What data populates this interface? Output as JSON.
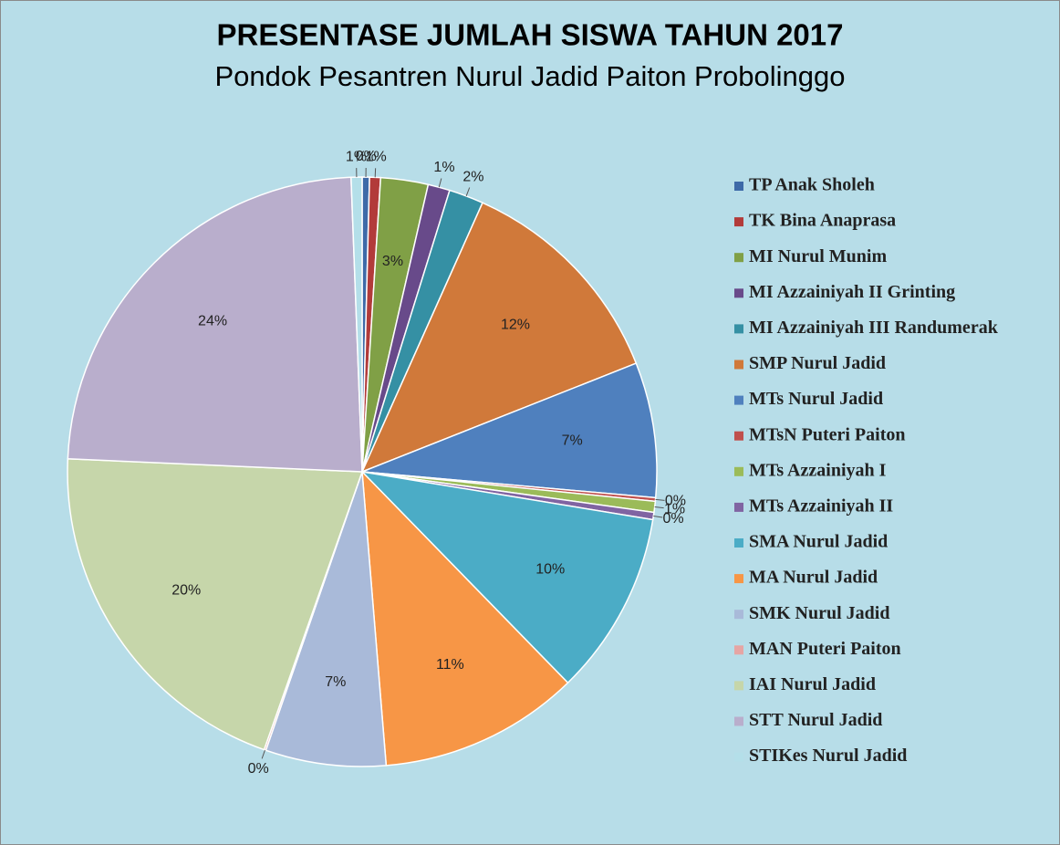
{
  "chart_data": {
    "type": "pie",
    "title": "PRESENTASE JUMLAH SISWA TAHUN 2017",
    "subtitle": "Pondok Pesantren Nurul Jadid Paiton Probolinggo",
    "categories": [
      "TP Anak Sholeh",
      "TK Bina Anaprasa",
      "MI Nurul Munim",
      "MI Azzainiyah II Grinting",
      "MI Azzainiyah III Randumerak",
      "SMP Nurul Jadid",
      "MTs Nurul Jadid",
      "MTsN Puteri Paiton",
      "MTs Azzainiyah I",
      "MTs Azzainiyah II",
      "SMA Nurul Jadid",
      "MA Nurul Jadid",
      "SMK Nurul Jadid",
      "MAN Puteri Paiton",
      "IAI Nurul Jadid",
      "STT Nurul Jadid",
      "STIKes Nurul Jadid"
    ],
    "values": [
      0.4,
      0.6,
      2.6,
      1.2,
      1.9,
      12.3,
      7.4,
      0.2,
      0.6,
      0.4,
      10.1,
      11.0,
      6.6,
      0.1,
      20.3,
      23.7,
      0.6
    ],
    "value_labels": [
      "0%",
      "1%",
      "3%",
      "1%",
      "2%",
      "12%",
      "7%",
      "0%",
      "1%",
      "0%",
      "10%",
      "11%",
      "7%",
      "0%",
      "20%",
      "24%",
      "1%"
    ],
    "colors": [
      "#3e6aa8",
      "#b23b3a",
      "#80a046",
      "#684a8a",
      "#3590a4",
      "#d0793a",
      "#4f80be",
      "#c0504d",
      "#9bbb59",
      "#8064a2",
      "#4bacc6",
      "#f79646",
      "#a9bad9",
      "#e6a5a4",
      "#c6d6aa",
      "#b9aecc",
      "#b4dfe9"
    ]
  }
}
